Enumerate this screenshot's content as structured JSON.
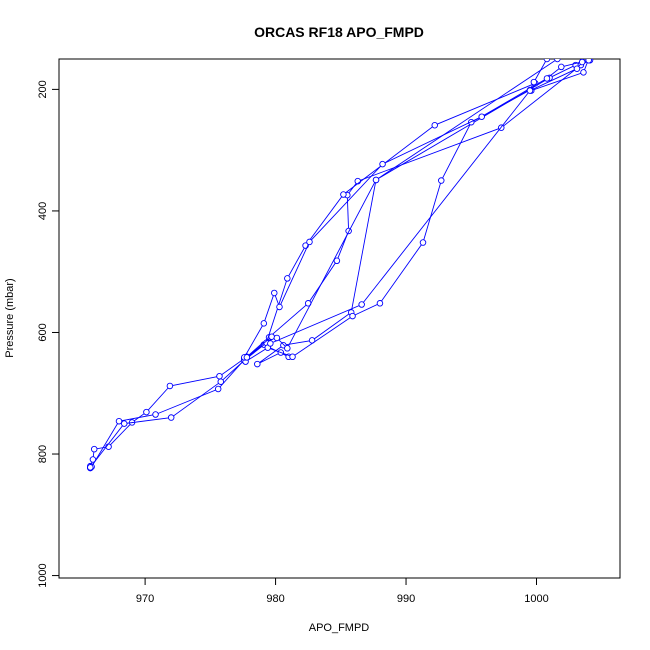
{
  "chart_data": {
    "type": "scatter",
    "title": "ORCAS RF18 APO_FMPD",
    "xlabel": "APO_FMPD",
    "ylabel": "Pressure (mbar)",
    "xlim": [
      963.4,
      1006.4
    ],
    "ylim": [
      1004,
      150
    ],
    "y_inverted": true,
    "xticks": [
      970,
      980,
      990,
      1000
    ],
    "yticks": [
      200,
      400,
      600,
      800,
      1000
    ],
    "grid": false,
    "legend": "none",
    "color": "#0000ff",
    "series": [
      {
        "x": [
          965.8,
          965.8,
          966.0,
          966.1,
          967.2,
          969.0,
          970.1,
          971.9,
          975.7,
          977.6,
          979.1,
          981.0,
          980.4,
          978.6,
          980.6,
          982.8,
          985.8,
          987.7,
          1001.0,
          1003.0,
          1004.0
        ],
        "y": [
          823,
          820,
          809,
          792,
          788,
          748,
          731,
          688,
          672,
          643,
          620,
          640,
          633,
          652,
          621,
          613,
          567,
          349,
          181,
          160,
          152
        ]
      },
      {
        "x": [
          965.8,
          965.9,
          968.0,
          970.8,
          975.6,
          977.8,
          979.5,
          982.5,
          984.7,
          985.6,
          985.5,
          986.3,
          997.3,
          1003.4,
          1004.1
        ],
        "y": [
          823,
          821,
          746,
          735,
          693,
          640,
          608,
          552,
          482,
          433,
          374,
          351,
          263,
          160,
          152
        ]
      },
      {
        "x": [
          965.8,
          968.4,
          972.0,
          975.8,
          977.6,
          979.3,
          980.9,
          982.3,
          985.2,
          992.2,
          999.9,
          999.6,
          1003.6,
          1004.0
        ],
        "y": [
          822,
          750,
          740,
          681,
          646,
          617,
          511,
          457,
          373,
          259,
          190,
          202,
          172,
          150
        ]
      },
      {
        "x": [
          977.7,
          979.4,
          981.3,
          985.9,
          988.0,
          991.3,
          992.7,
          995.0,
          999.5,
          999.8,
          1000.8
        ],
        "y": [
          648,
          625,
          640,
          573,
          552,
          452,
          350,
          254,
          201,
          188,
          150
        ]
      },
      {
        "x": [
          977.6,
          979.1,
          979.9,
          980.3,
          982.6,
          988.2,
          995.8,
          1000.8,
          1001.9,
          1004.0
        ],
        "y": [
          641,
          585,
          535,
          558,
          451,
          323,
          245,
          182,
          163,
          152
        ]
      },
      {
        "x": [
          977.8,
          979.7,
          979.6,
          986.6,
          999.5,
          1003.1,
          1003.5
        ],
        "y": [
          641,
          607,
          618,
          554,
          202,
          166,
          155
        ]
      },
      {
        "x": [
          980.1,
          980.9,
          987.7,
          1001.6
        ],
        "y": [
          609,
          626,
          349,
          150
        ]
      }
    ]
  }
}
